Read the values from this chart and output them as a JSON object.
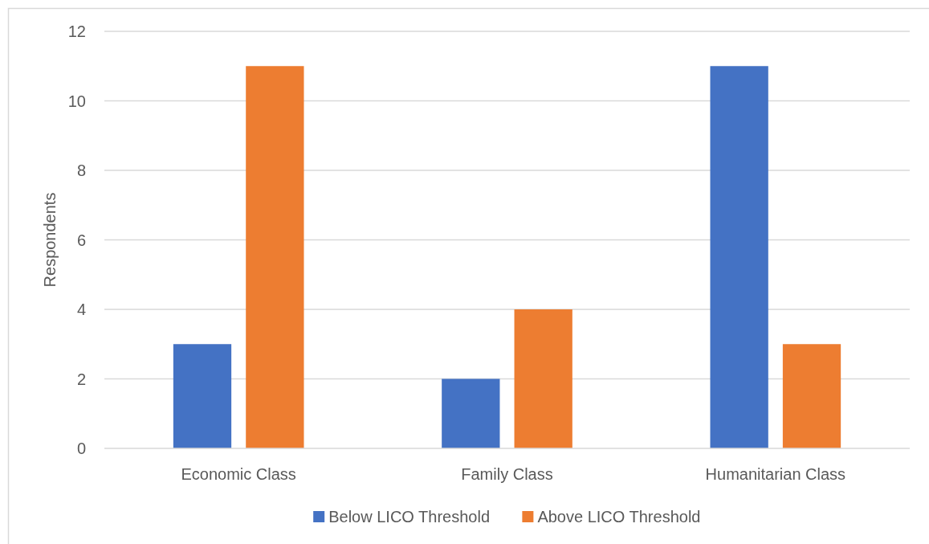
{
  "chart_data": {
    "type": "bar",
    "ylabel": "Respondents",
    "categories": [
      "Economic Class",
      "Family Class",
      "Humanitarian Class"
    ],
    "series": [
      {
        "name": "Below LICO Threshold",
        "color": "#4472c4",
        "values": [
          3,
          2,
          11
        ]
      },
      {
        "name": "Above LICO Threshold",
        "color": "#ed7d31",
        "values": [
          11,
          4,
          3
        ]
      }
    ],
    "ylim": [
      0,
      12
    ],
    "yticks": [
      0,
      2,
      4,
      6,
      8,
      10,
      12
    ],
    "grid": "y",
    "legend": "bottom"
  }
}
